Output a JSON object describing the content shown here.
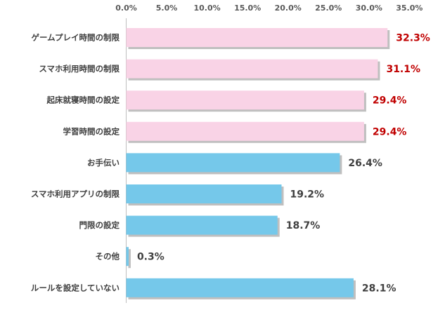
{
  "chart_data": {
    "type": "bar",
    "orientation": "horizontal",
    "title": "",
    "xlabel": "",
    "ylabel": "",
    "xlim": [
      0,
      35
    ],
    "x_ticks": [
      "0.0%",
      "5.0%",
      "10.0%",
      "15.0%",
      "20.0%",
      "25.0%",
      "30.0%",
      "35.0%"
    ],
    "axis_position": "top",
    "grid": false,
    "legend": "none",
    "categories": [
      "ゲームプレイ時間の制限",
      "スマホ利用時間の制限",
      "起床就寝時間の設定",
      "学習時間の設定",
      "お手伝い",
      "スマホ利用アプリの制限",
      "門限の設定",
      "その他",
      "ルールを設定していない"
    ],
    "values": [
      32.3,
      31.1,
      29.4,
      29.4,
      26.4,
      19.2,
      18.7,
      0.3,
      28.1
    ],
    "value_labels": [
      "32.3%",
      "31.1%",
      "29.4%",
      "29.4%",
      "26.4%",
      "19.2%",
      "18.7%",
      "0.3%",
      "28.1%"
    ],
    "highlighted": [
      true,
      true,
      true,
      true,
      false,
      false,
      false,
      false,
      false
    ],
    "colors": {
      "highlight_bar": "#f9d3e6",
      "normal_bar": "#75c8ea",
      "highlight_label": "#c00000",
      "normal_label": "#404040",
      "shadow": "#bfbfbf",
      "axis": "#bfbfbf"
    }
  }
}
